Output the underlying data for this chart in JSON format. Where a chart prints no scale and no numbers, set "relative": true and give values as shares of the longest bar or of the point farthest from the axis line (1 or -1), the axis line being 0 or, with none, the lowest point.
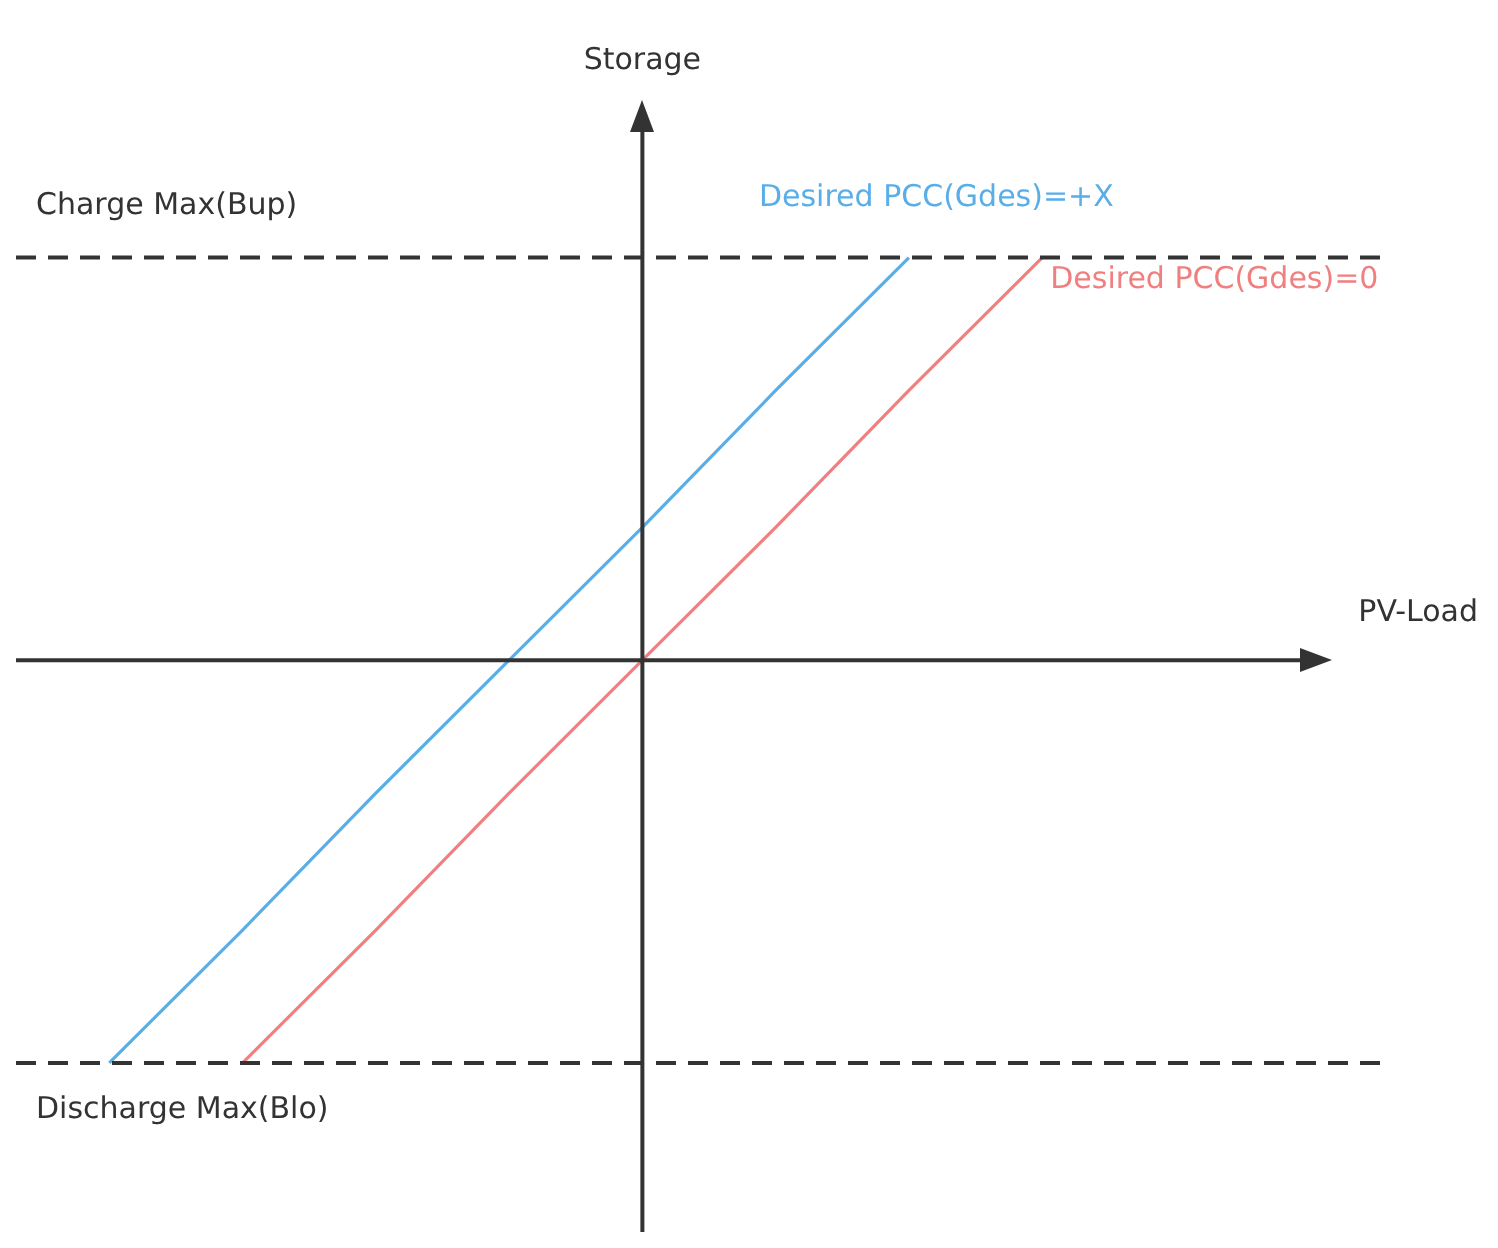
{
  "chart_data": {
    "type": "line",
    "relative": true,
    "annotations": [
      "Storage",
      "PV-Load"
    ],
    "legend": false,
    "marker": "none",
    "categories": [
      null,
      null,
      null,
      null,
      null,
      null,
      null,
      null
    ],
    "series": [
      {
        "name": "Desired PCC(Gdes)=+X",
        "color": "#5aaee8",
        "values": [
          -1,
          -0.67,
          -0.33,
          0,
          0.33,
          0.67,
          1,
          null
        ]
      },
      {
        "name": "Desired PCC(Gdes)=0",
        "color": "#f08080",
        "values": [
          null,
          -1,
          -0.67,
          -0.33,
          0,
          0.33,
          0.67,
          1
        ]
      }
    ],
    "ref_lines": [
      {
        "axis": "y",
        "value": 1,
        "label": "Charge Max(Bup)",
        "color": "#333333",
        "line_style": "dashed"
      },
      {
        "axis": "y",
        "value": -1,
        "label": "Discharge Max(Blo)",
        "color": "#333333",
        "line_style": "dashed"
      }
    ]
  }
}
